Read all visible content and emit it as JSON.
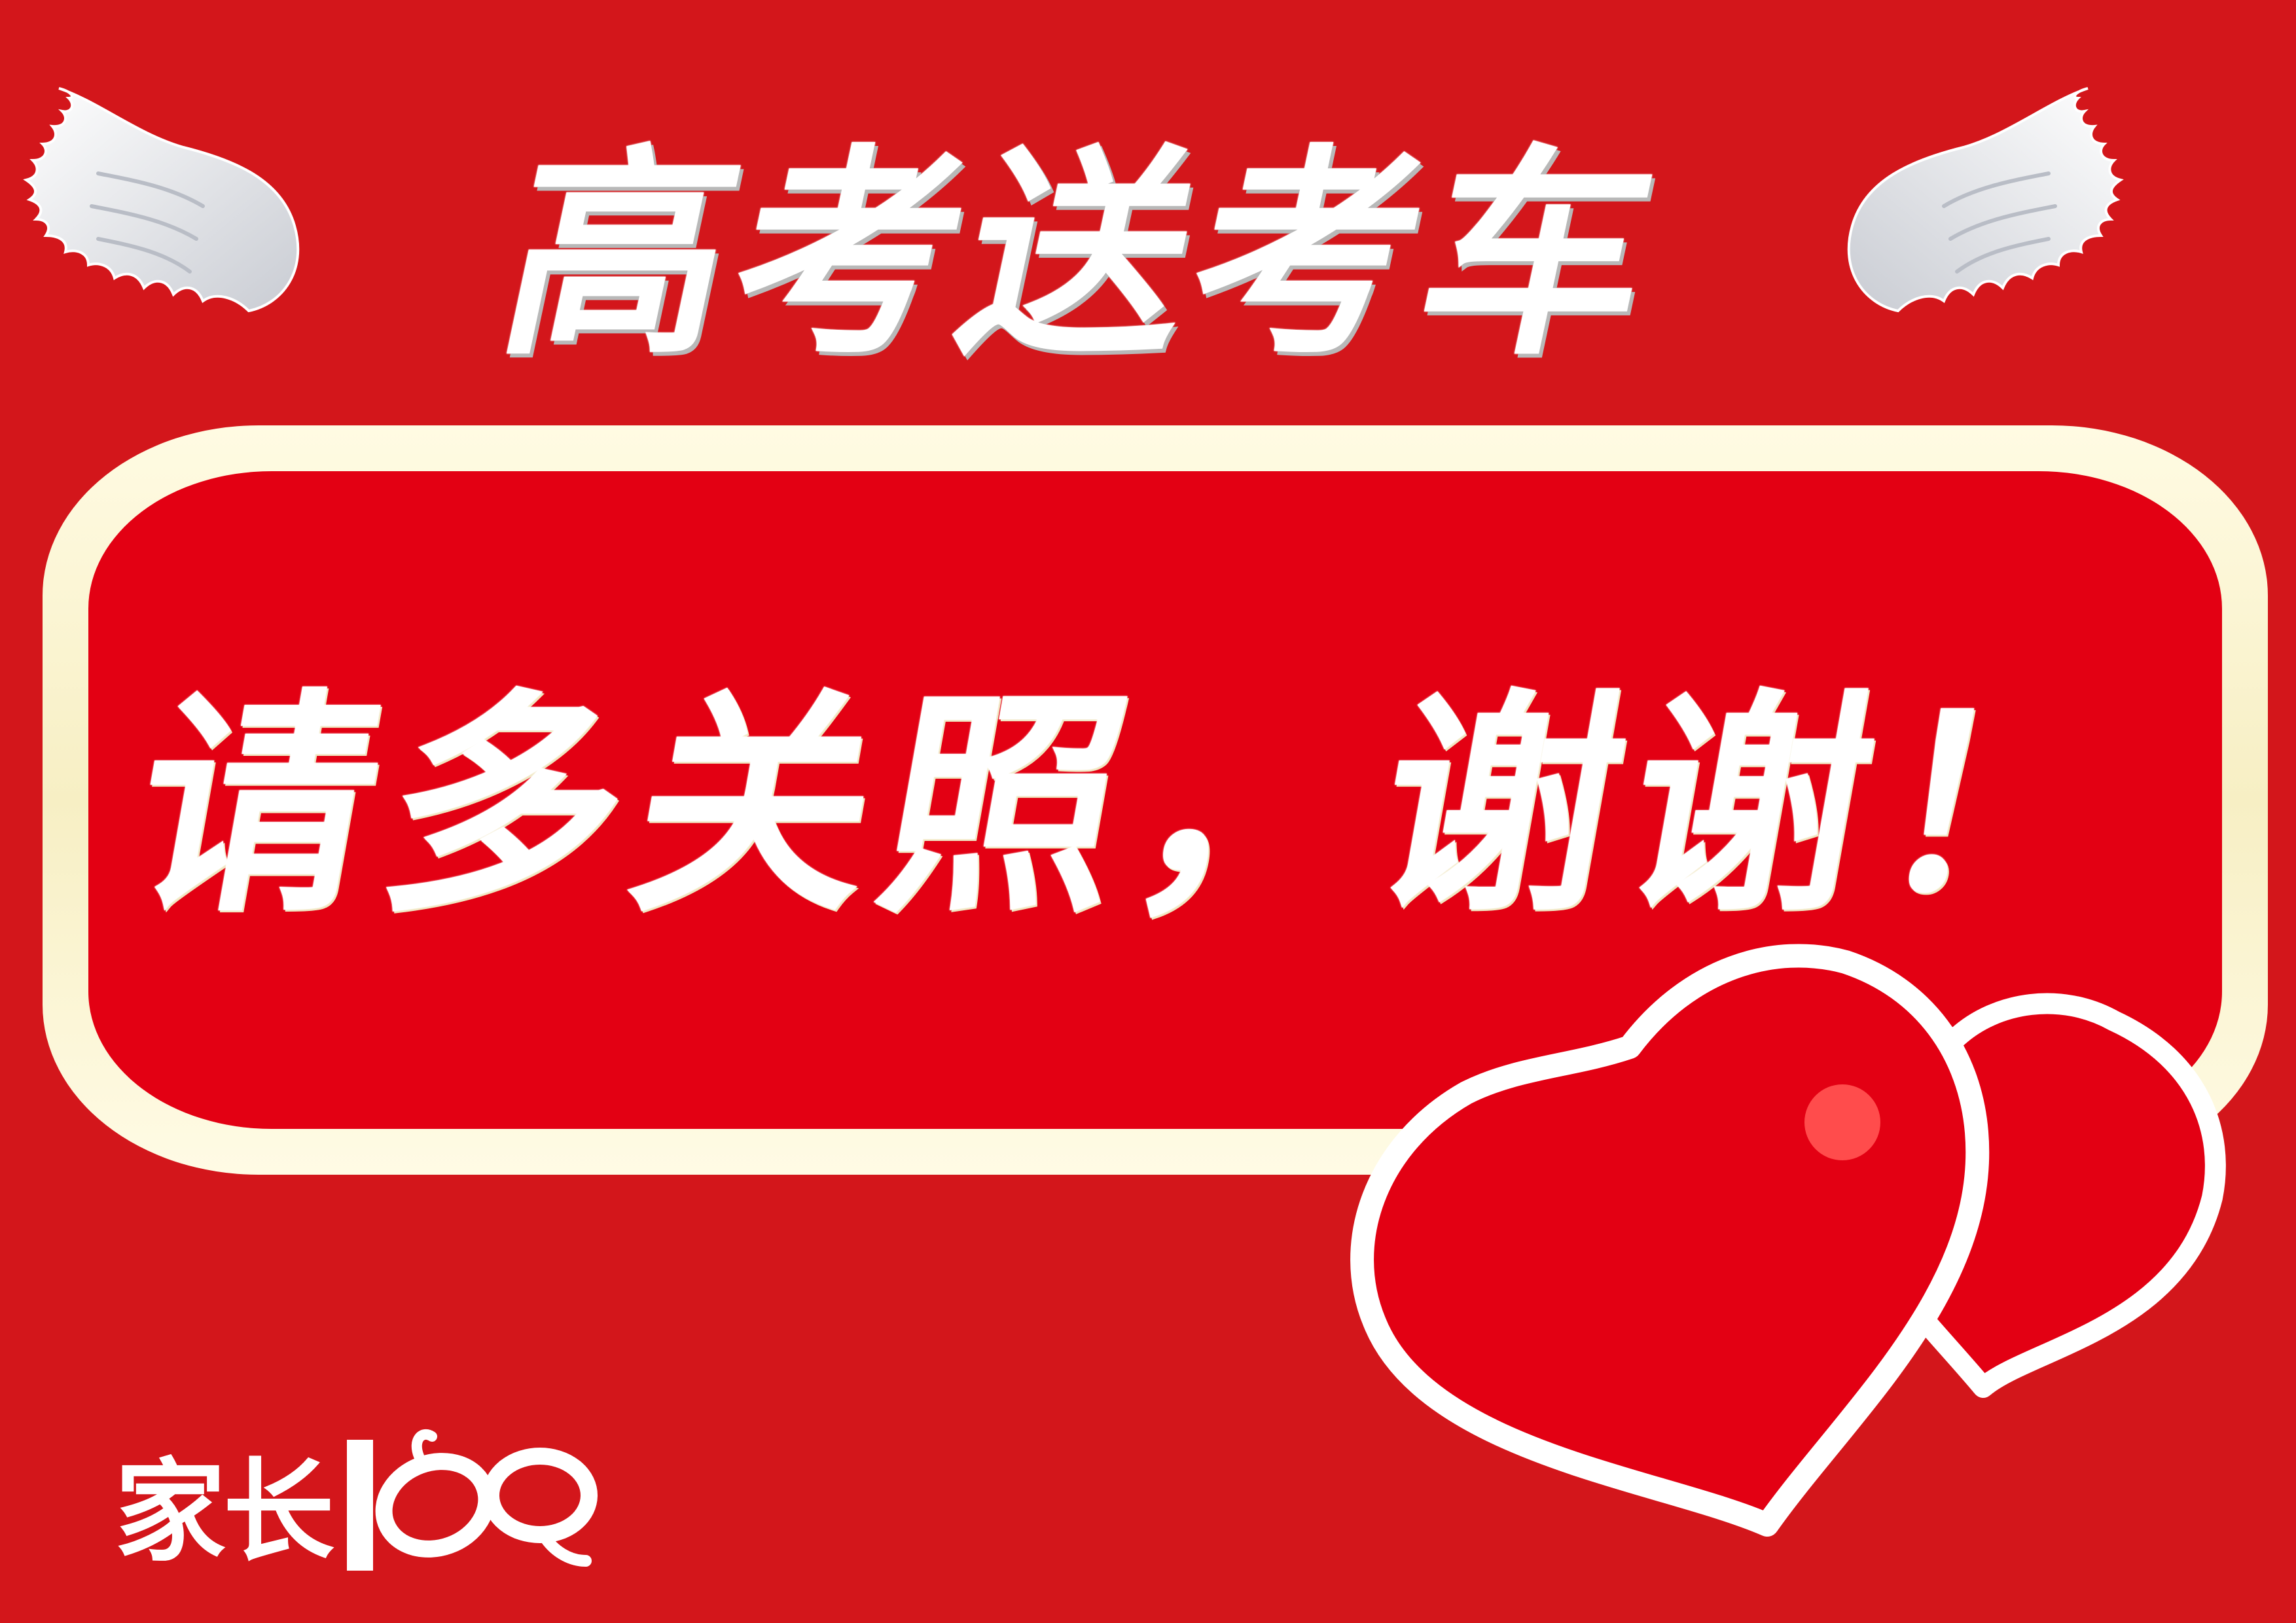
{
  "banner": {
    "title": "高考送考车",
    "message": "请多关照，谢谢！"
  },
  "logo": {
    "text": "家长",
    "number": "100"
  },
  "colors": {
    "background": "#d3161b",
    "panel": "#e30013",
    "frame": "#fff8dc",
    "text": "#ffffff",
    "heart": "#e30013",
    "heart_highlight": "#ff4c4c"
  },
  "icons": {
    "left_wing": "angel-wing-icon",
    "right_wing": "angel-wing-icon",
    "hearts": "double-heart-icon"
  }
}
